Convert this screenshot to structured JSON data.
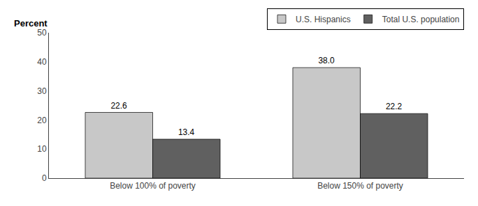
{
  "chart_data": {
    "type": "bar",
    "ylabel": "Percent",
    "categories": [
      "Below 100% of poverty",
      "Below 150% of poverty"
    ],
    "series": [
      {
        "name": "U.S. Hispanics",
        "color": "#c8c8c8",
        "values": [
          22.6,
          38.0
        ],
        "value_labels": [
          "22.6",
          "38.0"
        ]
      },
      {
        "name": "Total U.S. population",
        "color": "#606060",
        "values": [
          13.4,
          22.2
        ],
        "value_labels": [
          "13.4",
          "22.2"
        ]
      }
    ],
    "ylim": [
      0,
      50
    ],
    "yticks": [
      0,
      10,
      20,
      30,
      40,
      50
    ],
    "data_labels": true,
    "legend": "upper right",
    "grid": false
  }
}
